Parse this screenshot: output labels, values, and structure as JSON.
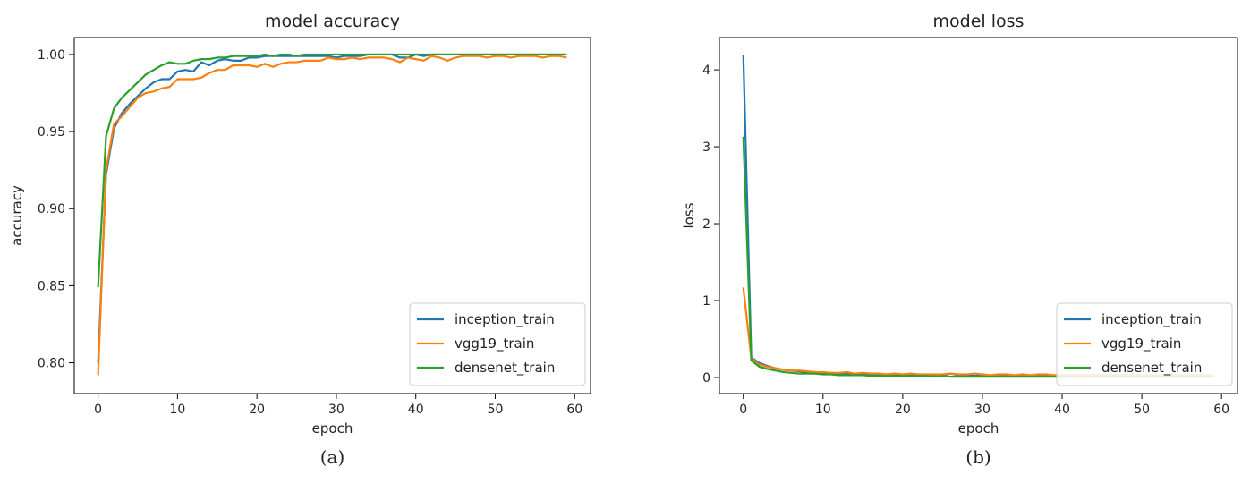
{
  "series_colors": [
    "#1f77b4",
    "#ff7f0e",
    "#2ca02c"
  ],
  "chart_data": [
    {
      "type": "line",
      "title": "model accuracy",
      "xlabel": "epoch",
      "ylabel": "accuracy",
      "caption": "(a)",
      "xlim": [
        -3,
        62
      ],
      "ylim": [
        0.78,
        1.011
      ],
      "xticks": [
        0,
        10,
        20,
        30,
        40,
        50,
        60
      ],
      "yticks": [
        "0.80",
        "0.85",
        "0.90",
        "0.95",
        "1.00"
      ],
      "legend_position": "lower-right",
      "grid": false,
      "x_start": 0,
      "series": [
        {
          "name": "inception_train",
          "values": [
            0.8,
            0.922,
            0.952,
            0.962,
            0.968,
            0.973,
            0.978,
            0.982,
            0.984,
            0.984,
            0.989,
            0.99,
            0.989,
            0.995,
            0.993,
            0.996,
            0.997,
            0.996,
            0.996,
            0.998,
            0.998,
            0.999,
            0.999,
            0.999,
            0.999,
            0.999,
            0.999,
            0.999,
            0.999,
            0.999,
            0.998,
            0.999,
            0.999,
            0.999,
            1.0,
            1.0,
            1.0,
            1.0,
            0.998,
            0.998,
            1.0,
            0.999,
            1.0,
            1.0,
            1.0,
            1.0,
            1.0,
            1.0,
            1.0,
            1.0,
            1.0,
            1.0,
            1.0,
            1.0,
            1.0,
            1.0,
            1.0,
            1.0,
            1.0,
            1.0
          ]
        },
        {
          "name": "vgg19_train",
          "values": [
            0.792,
            0.925,
            0.955,
            0.96,
            0.966,
            0.972,
            0.975,
            0.976,
            0.978,
            0.979,
            0.984,
            0.984,
            0.984,
            0.985,
            0.988,
            0.99,
            0.99,
            0.993,
            0.993,
            0.993,
            0.992,
            0.994,
            0.992,
            0.994,
            0.995,
            0.995,
            0.996,
            0.996,
            0.996,
            0.998,
            0.997,
            0.997,
            0.998,
            0.997,
            0.998,
            0.998,
            0.998,
            0.997,
            0.995,
            0.998,
            0.997,
            0.996,
            0.999,
            0.998,
            0.996,
            0.998,
            0.999,
            0.999,
            0.999,
            0.998,
            0.999,
            0.999,
            0.998,
            0.999,
            0.999,
            0.999,
            0.998,
            0.999,
            0.999,
            0.998
          ]
        },
        {
          "name": "densenet_train",
          "values": [
            0.849,
            0.947,
            0.965,
            0.972,
            0.977,
            0.982,
            0.987,
            0.99,
            0.993,
            0.995,
            0.994,
            0.994,
            0.996,
            0.997,
            0.997,
            0.998,
            0.998,
            0.999,
            0.999,
            0.999,
            0.999,
            1.0,
            0.999,
            1.0,
            1.0,
            0.999,
            1.0,
            1.0,
            1.0,
            1.0,
            1.0,
            1.0,
            1.0,
            1.0,
            1.0,
            1.0,
            1.0,
            1.0,
            1.0,
            1.0,
            1.0,
            1.0,
            1.0,
            1.0,
            1.0,
            1.0,
            1.0,
            1.0,
            1.0,
            1.0,
            1.0,
            1.0,
            1.0,
            1.0,
            1.0,
            1.0,
            1.0,
            1.0,
            1.0,
            1.0
          ]
        }
      ]
    },
    {
      "type": "line",
      "title": "model loss",
      "xlabel": "epoch",
      "ylabel": "loss",
      "caption": "(b)",
      "xlim": [
        -3,
        62
      ],
      "ylim": [
        -0.21,
        4.42
      ],
      "xticks": [
        0,
        10,
        20,
        30,
        40,
        50,
        60
      ],
      "yticks": [
        "0",
        "1",
        "2",
        "3",
        "4"
      ],
      "legend_position": "lower-right",
      "grid": false,
      "x_start": 0,
      "series": [
        {
          "name": "inception_train",
          "values": [
            4.2,
            0.26,
            0.19,
            0.15,
            0.12,
            0.1,
            0.09,
            0.08,
            0.07,
            0.07,
            0.06,
            0.06,
            0.05,
            0.05,
            0.05,
            0.04,
            0.04,
            0.04,
            0.03,
            0.04,
            0.03,
            0.03,
            0.03,
            0.03,
            0.03,
            0.03,
            0.05,
            0.03,
            0.03,
            0.02,
            0.03,
            0.02,
            0.03,
            0.02,
            0.02,
            0.02,
            0.02,
            0.02,
            0.02,
            0.02,
            0.02,
            0.02,
            0.02,
            0.02,
            0.02,
            0.02,
            0.02,
            0.02,
            0.02,
            0.02,
            0.02,
            0.02,
            0.02,
            0.02,
            0.02,
            0.02,
            0.02,
            0.02,
            0.02,
            0.02
          ]
        },
        {
          "name": "vgg19_train",
          "values": [
            1.17,
            0.25,
            0.17,
            0.14,
            0.12,
            0.1,
            0.09,
            0.09,
            0.08,
            0.07,
            0.07,
            0.06,
            0.06,
            0.07,
            0.05,
            0.06,
            0.05,
            0.05,
            0.04,
            0.05,
            0.04,
            0.05,
            0.04,
            0.04,
            0.04,
            0.04,
            0.05,
            0.04,
            0.04,
            0.05,
            0.04,
            0.03,
            0.04,
            0.04,
            0.03,
            0.04,
            0.03,
            0.04,
            0.04,
            0.03,
            0.03,
            0.03,
            0.03,
            0.03,
            0.03,
            0.03,
            0.03,
            0.03,
            0.03,
            0.03,
            0.03,
            0.03,
            0.03,
            0.03,
            0.03,
            0.03,
            0.03,
            0.03,
            0.03,
            0.03
          ]
        },
        {
          "name": "densenet_train",
          "values": [
            3.13,
            0.22,
            0.14,
            0.11,
            0.09,
            0.07,
            0.06,
            0.05,
            0.05,
            0.05,
            0.04,
            0.04,
            0.03,
            0.03,
            0.03,
            0.03,
            0.02,
            0.02,
            0.02,
            0.02,
            0.02,
            0.02,
            0.02,
            0.02,
            0.01,
            0.02,
            0.01,
            0.01,
            0.01,
            0.01,
            0.01,
            0.01,
            0.01,
            0.01,
            0.01,
            0.01,
            0.01,
            0.01,
            0.01,
            0.01,
            0.01,
            0.01,
            0.01,
            0.01,
            0.01,
            0.01,
            0.01,
            0.01,
            0.01,
            0.01,
            0.01,
            0.01,
            0.01,
            0.01,
            0.01,
            0.01,
            0.01,
            0.01,
            0.01,
            0.01
          ]
        }
      ]
    }
  ]
}
